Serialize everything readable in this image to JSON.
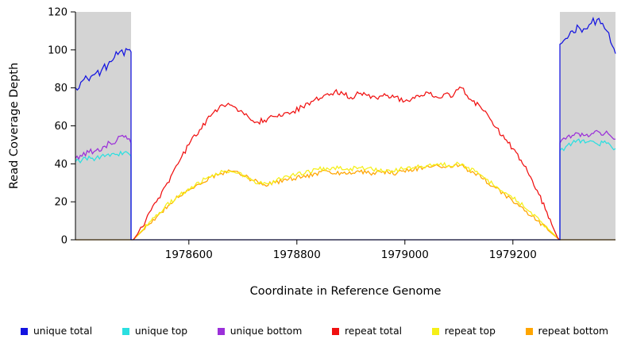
{
  "chart_data": {
    "type": "line",
    "title": "",
    "xlabel": "Coordinate in Reference Genome",
    "ylabel": "Read Coverage Depth",
    "xlim": [
      1978390,
      1979390
    ],
    "ylim": [
      0,
      120
    ],
    "x_ticks": [
      1978600,
      1978800,
      1979000,
      1979200
    ],
    "y_ticks": [
      0,
      20,
      40,
      60,
      80,
      100,
      120
    ],
    "grid": false,
    "legend_position": "bottom",
    "shaded_regions": [
      {
        "name": "unique-region-left",
        "x0": 1978390,
        "x1": 1978493,
        "color": "#d4d4d4"
      },
      {
        "name": "unique-region-right",
        "x0": 1979287,
        "x1": 1979390,
        "color": "#d4d4d4"
      }
    ],
    "series": [
      {
        "name": "unique total",
        "color": "#1414e0",
        "noise": 2.2,
        "segments": [
          [
            [
              1978390,
              80
            ],
            [
              1978400,
              83
            ],
            [
              1978412,
              85
            ],
            [
              1978425,
              87
            ],
            [
              1978438,
              89
            ],
            [
              1978450,
              92
            ],
            [
              1978462,
              96
            ],
            [
              1978472,
              99
            ],
            [
              1978480,
              97
            ],
            [
              1978487,
              100
            ],
            [
              1978493,
              99
            ],
            [
              1978493,
              0
            ],
            [
              1979287,
              0
            ],
            [
              1979287,
              103
            ],
            [
              1979298,
              106
            ],
            [
              1979310,
              110
            ],
            [
              1979322,
              112
            ],
            [
              1979334,
              111
            ],
            [
              1979345,
              114
            ],
            [
              1979356,
              116
            ],
            [
              1979366,
              114
            ],
            [
              1979374,
              110
            ],
            [
              1979381,
              104
            ],
            [
              1979390,
              98
            ]
          ]
        ]
      },
      {
        "name": "unique top",
        "color": "#2bdfe0",
        "noise": 1.6,
        "segments": [
          [
            [
              1978390,
              41
            ],
            [
              1978402,
              42
            ],
            [
              1978415,
              44
            ],
            [
              1978428,
              43
            ],
            [
              1978441,
              45
            ],
            [
              1978454,
              44
            ],
            [
              1978467,
              45
            ],
            [
              1978480,
              46
            ],
            [
              1978490,
              45
            ],
            [
              1978493,
              44
            ],
            [
              1978493,
              0
            ]
          ],
          [
            [
              1979287,
              0
            ],
            [
              1979287,
              47
            ],
            [
              1979298,
              49
            ],
            [
              1979310,
              51
            ],
            [
              1979322,
              53
            ],
            [
              1979334,
              51
            ],
            [
              1979346,
              52
            ],
            [
              1979358,
              50
            ],
            [
              1979370,
              52
            ],
            [
              1979380,
              50
            ],
            [
              1979390,
              48
            ]
          ]
        ]
      },
      {
        "name": "unique bottom",
        "color": "#9b30d9",
        "noise": 1.6,
        "segments": [
          [
            [
              1978390,
              43
            ],
            [
              1978402,
              44
            ],
            [
              1978415,
              46
            ],
            [
              1978428,
              47
            ],
            [
              1978441,
              49
            ],
            [
              1978454,
              51
            ],
            [
              1978466,
              52
            ],
            [
              1978477,
              55
            ],
            [
              1978486,
              53
            ],
            [
              1978493,
              51
            ],
            [
              1978493,
              0
            ]
          ],
          [
            [
              1979287,
              0
            ],
            [
              1979287,
              51
            ],
            [
              1979298,
              53
            ],
            [
              1979310,
              55
            ],
            [
              1979322,
              56
            ],
            [
              1979334,
              55
            ],
            [
              1979346,
              56
            ],
            [
              1979358,
              57
            ],
            [
              1979370,
              56
            ],
            [
              1979380,
              55
            ],
            [
              1979390,
              53
            ]
          ]
        ]
      },
      {
        "name": "repeat total",
        "color": "#f01010",
        "noise": 1.4,
        "segments": [
          [
            [
              1978497,
              0
            ],
            [
              1978505,
              3
            ],
            [
              1978520,
              10
            ],
            [
              1978540,
              20
            ],
            [
              1978560,
              30
            ],
            [
              1978580,
              40
            ],
            [
              1978600,
              50
            ],
            [
              1978620,
              58
            ],
            [
              1978640,
              65
            ],
            [
              1978655,
              69
            ],
            [
              1978670,
              71
            ],
            [
              1978685,
              70
            ],
            [
              1978700,
              67
            ],
            [
              1978715,
              63
            ],
            [
              1978725,
              62
            ],
            [
              1978740,
              63
            ],
            [
              1978755,
              65
            ],
            [
              1978770,
              65
            ],
            [
              1978790,
              67
            ],
            [
              1978810,
              70
            ],
            [
              1978830,
              73
            ],
            [
              1978850,
              76
            ],
            [
              1978870,
              78
            ],
            [
              1978885,
              77
            ],
            [
              1978900,
              75
            ],
            [
              1978915,
              77
            ],
            [
              1978930,
              76
            ],
            [
              1978950,
              74
            ],
            [
              1978965,
              76
            ],
            [
              1978980,
              75
            ],
            [
              1979000,
              73
            ],
            [
              1979015,
              75
            ],
            [
              1979030,
              76
            ],
            [
              1979045,
              77
            ],
            [
              1979060,
              75
            ],
            [
              1979075,
              77
            ],
            [
              1979085,
              75
            ],
            [
              1979095,
              79
            ],
            [
              1979105,
              80
            ],
            [
              1979115,
              76
            ],
            [
              1979125,
              73
            ],
            [
              1979140,
              70
            ],
            [
              1979155,
              65
            ],
            [
              1979170,
              59
            ],
            [
              1979185,
              53
            ],
            [
              1979200,
              48
            ],
            [
              1979215,
              42
            ],
            [
              1979230,
              34
            ],
            [
              1979245,
              26
            ],
            [
              1979260,
              16
            ],
            [
              1979272,
              8
            ],
            [
              1979283,
              1
            ],
            [
              1979286,
              0
            ]
          ]
        ]
      },
      {
        "name": "repeat top",
        "color": "#f5ef18",
        "noise": 1.2,
        "segments": [
          [
            [
              1978497,
              0
            ],
            [
              1978510,
              4
            ],
            [
              1978530,
              10
            ],
            [
              1978555,
              17
            ],
            [
              1978580,
              23
            ],
            [
              1978605,
              28
            ],
            [
              1978630,
              32
            ],
            [
              1978650,
              35
            ],
            [
              1978670,
              36
            ],
            [
              1978690,
              35
            ],
            [
              1978710,
              32
            ],
            [
              1978730,
              30
            ],
            [
              1978750,
              30
            ],
            [
              1978770,
              32
            ],
            [
              1978790,
              34
            ],
            [
              1978815,
              35
            ],
            [
              1978840,
              37
            ],
            [
              1978865,
              38
            ],
            [
              1978890,
              37
            ],
            [
              1978915,
              38
            ],
            [
              1978940,
              37
            ],
            [
              1978965,
              36
            ],
            [
              1978990,
              37
            ],
            [
              1979015,
              38
            ],
            [
              1979040,
              39
            ],
            [
              1979060,
              40
            ],
            [
              1979080,
              39
            ],
            [
              1979100,
              40
            ],
            [
              1979115,
              38
            ],
            [
              1979130,
              36
            ],
            [
              1979150,
              32
            ],
            [
              1979170,
              28
            ],
            [
              1979190,
              24
            ],
            [
              1979210,
              20
            ],
            [
              1979230,
              15
            ],
            [
              1979250,
              10
            ],
            [
              1979268,
              5
            ],
            [
              1979283,
              1
            ],
            [
              1979287,
              0
            ]
          ]
        ]
      },
      {
        "name": "repeat bottom",
        "color": "#ffa500",
        "noise": 1.2,
        "segments": [
          [
            [
              1978390,
              0
            ],
            [
              1978497,
              0
            ],
            [
              1978515,
              5
            ],
            [
              1978540,
              12
            ],
            [
              1978565,
              19
            ],
            [
              1978590,
              25
            ],
            [
              1978615,
              29
            ],
            [
              1978640,
              33
            ],
            [
              1978660,
              35
            ],
            [
              1978680,
              36
            ],
            [
              1978700,
              34
            ],
            [
              1978720,
              31
            ],
            [
              1978740,
              29
            ],
            [
              1978760,
              30
            ],
            [
              1978785,
              32
            ],
            [
              1978810,
              33
            ],
            [
              1978835,
              35
            ],
            [
              1978860,
              36
            ],
            [
              1978885,
              35
            ],
            [
              1978910,
              36
            ],
            [
              1978935,
              35
            ],
            [
              1978960,
              36
            ],
            [
              1978985,
              35
            ],
            [
              1979010,
              37
            ],
            [
              1979035,
              38
            ],
            [
              1979055,
              39
            ],
            [
              1979075,
              38
            ],
            [
              1979095,
              40
            ],
            [
              1979110,
              38
            ],
            [
              1979125,
              36
            ],
            [
              1979145,
              32
            ],
            [
              1979165,
              28
            ],
            [
              1979185,
              24
            ],
            [
              1979205,
              19
            ],
            [
              1979225,
              15
            ],
            [
              1979245,
              10
            ],
            [
              1979265,
              5
            ],
            [
              1979282,
              1
            ],
            [
              1979287,
              0
            ],
            [
              1979390,
              0
            ]
          ]
        ]
      }
    ]
  }
}
